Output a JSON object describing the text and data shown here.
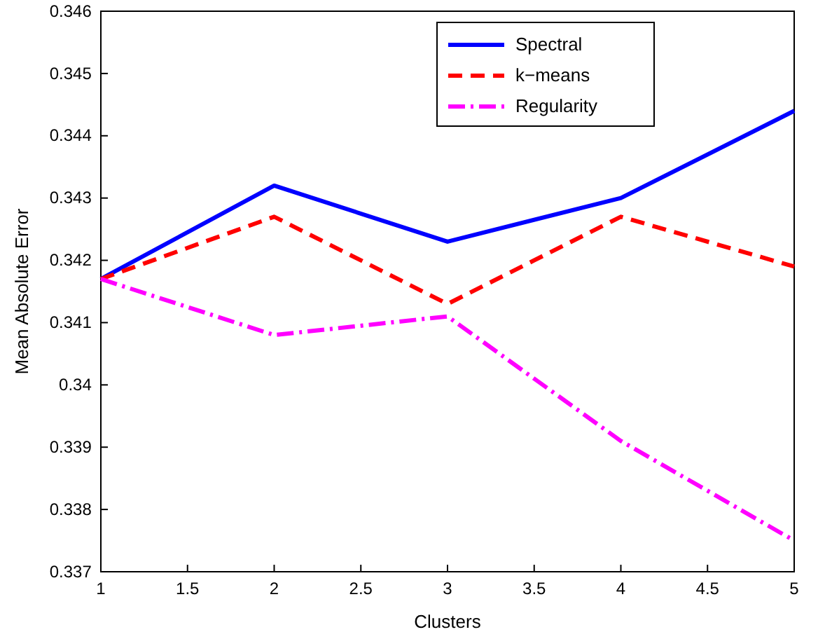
{
  "chart_data": {
    "type": "line",
    "xlabel": "Clusters",
    "ylabel": "Mean Absolute Error",
    "x": [
      1,
      2,
      3,
      4,
      5
    ],
    "xlim": [
      1,
      5
    ],
    "xticks": [
      1,
      1.5,
      2,
      2.5,
      3,
      3.5,
      4,
      4.5,
      5
    ],
    "ylim": [
      0.337,
      0.346
    ],
    "yticks": [
      0.337,
      0.338,
      0.339,
      0.34,
      0.341,
      0.342,
      0.343,
      0.344,
      0.345,
      0.346
    ],
    "grid": false,
    "legend": "top right",
    "marker": "none",
    "series": [
      {
        "name": "Spectral",
        "color": "#0000ff",
        "line_style": "solid",
        "values": [
          0.3417,
          0.3432,
          0.3423,
          0.343,
          0.3444
        ]
      },
      {
        "name": "k−means",
        "color": "#ff0000",
        "line_style": "dashed",
        "values": [
          0.3417,
          0.3427,
          0.3413,
          0.3427,
          0.3419
        ]
      },
      {
        "name": "Regularity",
        "color": "#ff00ff",
        "line_style": "dotted",
        "values": [
          0.3417,
          0.3408,
          0.3411,
          0.3391,
          0.3375
        ]
      }
    ]
  }
}
